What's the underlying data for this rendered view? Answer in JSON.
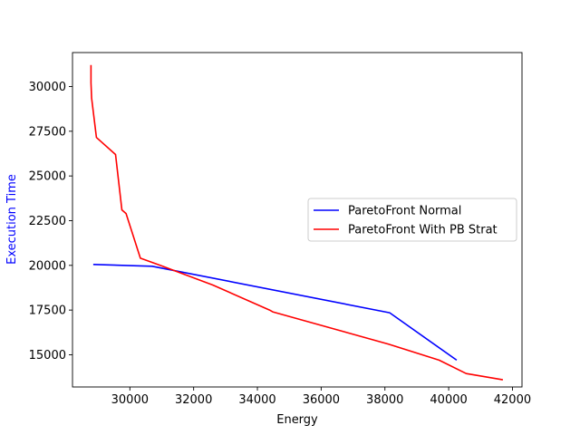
{
  "chart_data": {
    "type": "line",
    "title": "",
    "xlabel": "Energy",
    "ylabel": "Execution Time",
    "xlim": [
      28200,
      42300
    ],
    "ylim": [
      13200,
      31900
    ],
    "xticks": [
      30000,
      32000,
      34000,
      36000,
      38000,
      40000,
      42000
    ],
    "xtick_labels": [
      "30000",
      "32000",
      "34000",
      "36000",
      "38000",
      "40000",
      "42000"
    ],
    "yticks": [
      15000,
      17500,
      20000,
      22500,
      25000,
      27500,
      30000
    ],
    "ytick_labels": [
      "15000",
      "17500",
      "20000",
      "22500",
      "25000",
      "27500",
      "30000"
    ],
    "grid": false,
    "legend_position": "center-right",
    "colors": {
      "ylabel": "#0000ff"
    },
    "series": [
      {
        "name": "ParetoFront Normal",
        "color": "#0000ff",
        "x": [
          28850,
          30700,
          38150,
          40250
        ],
        "y": [
          20050,
          19950,
          17350,
          14700
        ]
      },
      {
        "name": "ParetoFront With PB Strat",
        "color": "#ff0000",
        "x": [
          28780,
          28780,
          28800,
          28950,
          29550,
          29750,
          29880,
          30330,
          30950,
          32600,
          34380,
          34480,
          38100,
          39700,
          40550,
          41700
        ],
        "y": [
          31200,
          30200,
          29350,
          27150,
          26200,
          23100,
          22900,
          20400,
          20000,
          18900,
          17500,
          17400,
          15600,
          14700,
          13950,
          13600
        ]
      }
    ]
  }
}
